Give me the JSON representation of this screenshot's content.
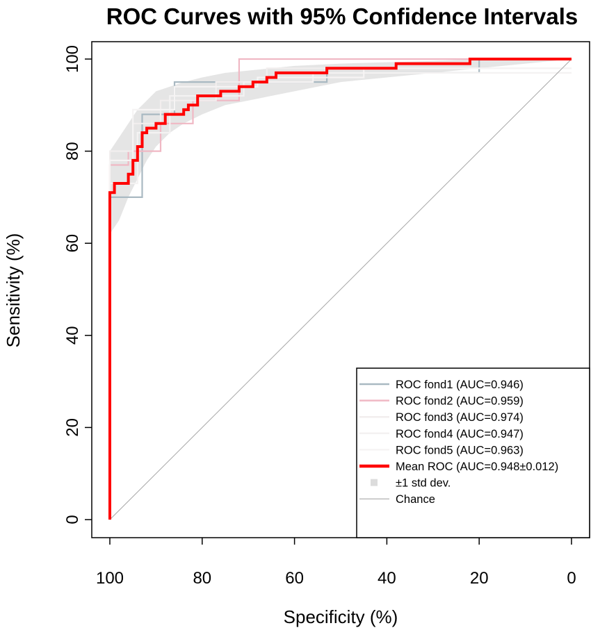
{
  "chart_data": {
    "type": "line",
    "title": "ROC Curves with 95% Confidence Intervals",
    "xlabel": "Specificity (%)",
    "ylabel": "Sensitivity (%)",
    "xlim": [
      100,
      0
    ],
    "ylim": [
      0,
      100
    ],
    "x_ticks": [
      "100",
      "80",
      "60",
      "40",
      "20",
      "0"
    ],
    "x_tick_values": [
      100,
      80,
      60,
      40,
      20,
      0
    ],
    "y_ticks": [
      "0",
      "20",
      "40",
      "60",
      "80",
      "100"
    ],
    "y_tick_values": [
      0,
      20,
      40,
      60,
      80,
      100
    ],
    "legend_position": "bottom-right",
    "colors": {
      "fold1": "#a9b9c2",
      "fold2": "#f0b8c4",
      "fold3": "#f2eeee",
      "fold4": "#f4f2f2",
      "fold5": "#f6f4f4",
      "mean": "#ff0000",
      "std_band": "#dcdcdc",
      "chance": "#a6a6a6"
    },
    "series": [
      {
        "name": "ROC fond1",
        "legend": "ROC fond1 (AUC=0.946)",
        "auc": 0.946,
        "points": [
          [
            100,
            0
          ],
          [
            100,
            70
          ],
          [
            93,
            70
          ],
          [
            93,
            88
          ],
          [
            86,
            88
          ],
          [
            86,
            95
          ],
          [
            76,
            95
          ],
          [
            53,
            95
          ],
          [
            53,
            97
          ],
          [
            20,
            97
          ],
          [
            20,
            100
          ],
          [
            0,
            100
          ]
        ]
      },
      {
        "name": "ROC fond2",
        "legend": "ROC fond2 (AUC=0.959)",
        "auc": 0.959,
        "points": [
          [
            100,
            0
          ],
          [
            100,
            77
          ],
          [
            96,
            77
          ],
          [
            96,
            80
          ],
          [
            89,
            80
          ],
          [
            89,
            86
          ],
          [
            82,
            86
          ],
          [
            82,
            91
          ],
          [
            72,
            91
          ],
          [
            72,
            100
          ],
          [
            0,
            100
          ]
        ]
      },
      {
        "name": "ROC fond3",
        "legend": "ROC fond3 (AUC=0.974)",
        "auc": 0.974,
        "points": [
          [
            100,
            0
          ],
          [
            100,
            80
          ],
          [
            95,
            80
          ],
          [
            95,
            86
          ],
          [
            89,
            86
          ],
          [
            89,
            91
          ],
          [
            77,
            91
          ],
          [
            77,
            95
          ],
          [
            66,
            95
          ],
          [
            66,
            98
          ],
          [
            0,
            98
          ]
        ]
      },
      {
        "name": "ROC fond4",
        "legend": "ROC fond4 (AUC=0.947)",
        "auc": 0.947,
        "points": [
          [
            100,
            0
          ],
          [
            100,
            73
          ],
          [
            94,
            73
          ],
          [
            94,
            84
          ],
          [
            87,
            84
          ],
          [
            87,
            92
          ],
          [
            71,
            92
          ],
          [
            71,
            95
          ],
          [
            56,
            95
          ],
          [
            56,
            97
          ],
          [
            0,
            97
          ]
        ]
      },
      {
        "name": "ROC fond5",
        "legend": "ROC fond5 (AUC=0.963)",
        "auc": 0.963,
        "points": [
          [
            100,
            0
          ],
          [
            100,
            78
          ],
          [
            95,
            78
          ],
          [
            95,
            89
          ],
          [
            86,
            89
          ],
          [
            86,
            94
          ],
          [
            68,
            94
          ],
          [
            68,
            96
          ],
          [
            45,
            96
          ],
          [
            45,
            98
          ],
          [
            0,
            98
          ]
        ]
      },
      {
        "name": "Mean ROC",
        "legend": "Mean ROC (AUC=0.948±0.012)",
        "auc": 0.948,
        "auc_std": 0.012,
        "points": [
          [
            100,
            0
          ],
          [
            100,
            71
          ],
          [
            99,
            71
          ],
          [
            99,
            73
          ],
          [
            96,
            73
          ],
          [
            96,
            75
          ],
          [
            95,
            75
          ],
          [
            95,
            78
          ],
          [
            94,
            78
          ],
          [
            94,
            81
          ],
          [
            93,
            81
          ],
          [
            93,
            84
          ],
          [
            92,
            84
          ],
          [
            92,
            85
          ],
          [
            90,
            85
          ],
          [
            90,
            86
          ],
          [
            88,
            86
          ],
          [
            88,
            88
          ],
          [
            84,
            88
          ],
          [
            84,
            89
          ],
          [
            83,
            89
          ],
          [
            83,
            90
          ],
          [
            81,
            90
          ],
          [
            81,
            92
          ],
          [
            76,
            92
          ],
          [
            76,
            93
          ],
          [
            72,
            93
          ],
          [
            72,
            94
          ],
          [
            69,
            94
          ],
          [
            69,
            95
          ],
          [
            66,
            95
          ],
          [
            66,
            96
          ],
          [
            64,
            96
          ],
          [
            64,
            97
          ],
          [
            53,
            97
          ],
          [
            53,
            98
          ],
          [
            38,
            98
          ],
          [
            38,
            99
          ],
          [
            22,
            99
          ],
          [
            22,
            100
          ],
          [
            0,
            100
          ]
        ]
      }
    ],
    "std_band": {
      "label": "±1 std dev.",
      "upper": [
        [
          100,
          80
        ],
        [
          98,
          83
        ],
        [
          96,
          86
        ],
        [
          94,
          89
        ],
        [
          92,
          91
        ],
        [
          90,
          93
        ],
        [
          87,
          94
        ],
        [
          84,
          95
        ],
        [
          80,
          96
        ],
        [
          75,
          97
        ],
        [
          70,
          97.5
        ],
        [
          65,
          98
        ],
        [
          60,
          98.5
        ],
        [
          50,
          99
        ],
        [
          40,
          99.3
        ],
        [
          30,
          99.6
        ],
        [
          20,
          100
        ],
        [
          0,
          100
        ]
      ],
      "lower": [
        [
          100,
          62
        ],
        [
          98,
          65
        ],
        [
          96,
          70
        ],
        [
          94,
          74
        ],
        [
          92,
          78
        ],
        [
          90,
          81
        ],
        [
          87,
          84
        ],
        [
          84,
          86
        ],
        [
          80,
          88
        ],
        [
          75,
          90
        ],
        [
          70,
          91
        ],
        [
          65,
          92
        ],
        [
          60,
          93
        ],
        [
          50,
          95
        ],
        [
          40,
          96
        ],
        [
          30,
          97
        ],
        [
          20,
          98
        ],
        [
          10,
          99
        ],
        [
          0,
          100
        ]
      ]
    },
    "chance": {
      "label": "Chance",
      "points": [
        [
          100,
          0
        ],
        [
          0,
          100
        ]
      ]
    }
  }
}
